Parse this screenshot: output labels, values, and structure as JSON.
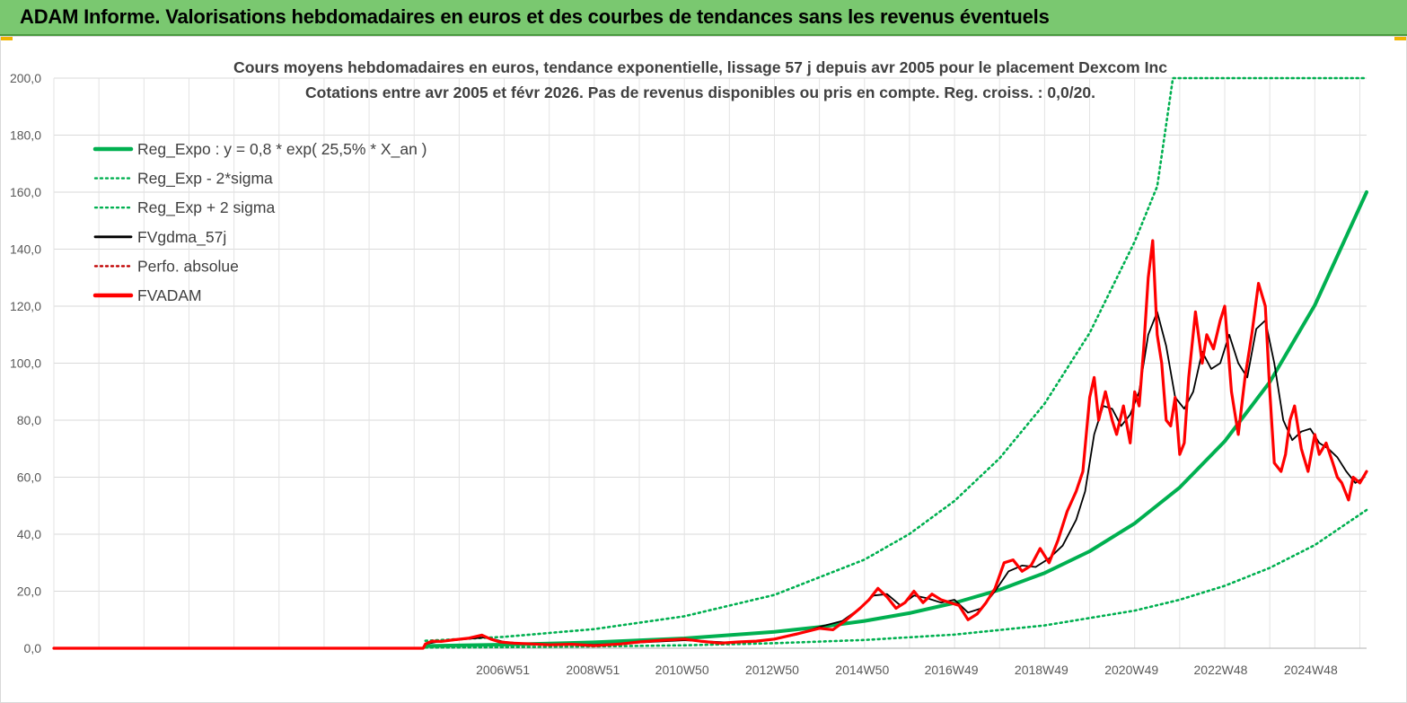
{
  "banner": {
    "title": "ADAM Informe. Valorisations hebdomadaires en euros et des courbes de tendances sans les revenus éventuels",
    "color": "#7ac870"
  },
  "chart_data": {
    "type": "line",
    "title": "Cours moyens hebdomadaires en euros, tendance exponentielle, lissage 57 j depuis avr 2005 pour le placement Dexcom Inc",
    "subtitle": "Cotations entre avr 2005 et févr 2026. Pas de revenus disponibles ou pris en compte. Reg. croiss. : 0,0/20.",
    "xlabel": "",
    "ylabel": "",
    "ylim": [
      0,
      200
    ],
    "xlim": [
      1997.0,
      2026.15
    ],
    "y_ticks": [
      "0,0",
      "20,0",
      "40,0",
      "60,0",
      "80,0",
      "100,0",
      "120,0",
      "140,0",
      "160,0",
      "180,0",
      "200,0"
    ],
    "x_ticks": [
      {
        "label": "2006W51",
        "x": 2006.97
      },
      {
        "label": "2008W51",
        "x": 2008.97
      },
      {
        "label": "2010W50",
        "x": 2010.95
      },
      {
        "label": "2012W50",
        "x": 2012.95
      },
      {
        "label": "2014W50",
        "x": 2014.95
      },
      {
        "label": "2016W49",
        "x": 2016.93
      },
      {
        "label": "2018W49",
        "x": 2018.93
      },
      {
        "label": "2020W49",
        "x": 2020.93
      },
      {
        "label": "2022W48",
        "x": 2022.91
      },
      {
        "label": "2024W48",
        "x": 2024.91
      }
    ],
    "grid": true,
    "legend_position": "top-left",
    "series": [
      {
        "name": "Reg_Expo : y = 0,8 * exp( 25,5% *  X_an )",
        "color": "#00b050",
        "style": "solid-thick",
        "x": [
          2005.25,
          2007,
          2009,
          2011,
          2013,
          2014,
          2015,
          2016,
          2017,
          2018,
          2019,
          2020,
          2021,
          2022,
          2023,
          2024,
          2025,
          2026.15
        ],
        "values": [
          0.8,
          1.25,
          2.08,
          3.46,
          5.77,
          7.43,
          9.57,
          12.3,
          15.9,
          20.5,
          26.4,
          34.0,
          43.8,
          56.4,
          72.6,
          93.4,
          120.3,
          160.0
        ]
      },
      {
        "name": "Reg_Exp - 2*sigma",
        "color": "#00b050",
        "style": "dotted",
        "x": [
          2005.25,
          2007,
          2009,
          2011,
          2013,
          2015,
          2017,
          2019,
          2021,
          2022,
          2023,
          2024,
          2025,
          2026.15
        ],
        "values": [
          0.25,
          0.38,
          0.63,
          1.05,
          1.75,
          2.9,
          4.8,
          8.0,
          13.2,
          17.0,
          21.9,
          28.2,
          36.2,
          48.5
        ]
      },
      {
        "name": "Reg_Exp + 2 sigma",
        "color": "#00b050",
        "style": "dotted",
        "x": [
          2005.25,
          2007,
          2009,
          2011,
          2013,
          2015,
          2016,
          2017,
          2018,
          2019,
          2020,
          2021,
          2021.5,
          2021.85,
          2022.5,
          2024,
          2026.15
        ],
        "values": [
          2.6,
          4.0,
          6.7,
          11.2,
          18.7,
          31.1,
          40.1,
          51.7,
          66.6,
          85.8,
          110.6,
          142.6,
          162.0,
          200.0,
          200.0,
          200.0,
          200.0
        ]
      },
      {
        "name": "FVgdma_57j",
        "color": "#000000",
        "style": "solid",
        "x": [
          2005.25,
          2005.5,
          2006,
          2006.6,
          2007,
          2007.5,
          2008,
          2008.5,
          2009,
          2009.5,
          2010,
          2010.5,
          2011,
          2011.5,
          2012,
          2012.5,
          2013,
          2013.5,
          2014,
          2014.5,
          2014.9,
          2015.2,
          2015.5,
          2015.8,
          2016.1,
          2016.4,
          2016.7,
          2017,
          2017.3,
          2017.6,
          2017.9,
          2018.2,
          2018.5,
          2018.8,
          2019.1,
          2019.4,
          2019.7,
          2019.9,
          2020.1,
          2020.3,
          2020.5,
          2020.7,
          2020.9,
          2021.1,
          2021.3,
          2021.5,
          2021.7,
          2021.9,
          2022.1,
          2022.3,
          2022.5,
          2022.7,
          2022.9,
          2023.1,
          2023.3,
          2023.5,
          2023.7,
          2023.9,
          2024.1,
          2024.3,
          2024.5,
          2024.7,
          2024.9,
          2025.1,
          2025.3,
          2025.5,
          2025.7,
          2025.9,
          2026.1
        ],
        "values": [
          1.5,
          2.2,
          3.0,
          3.8,
          2.2,
          1.6,
          1.4,
          1.3,
          1.2,
          1.5,
          2.0,
          2.4,
          2.8,
          2.4,
          2.0,
          2.4,
          3.2,
          4.8,
          7.5,
          9.5,
          14.0,
          18.5,
          19.0,
          15.0,
          18.5,
          17.5,
          16.0,
          17.0,
          12.5,
          14.0,
          20.0,
          27.0,
          29.0,
          28.5,
          31.5,
          36.0,
          45.0,
          55.0,
          75.0,
          85.0,
          84.0,
          78.0,
          82.0,
          90.0,
          110.0,
          118.0,
          106.0,
          88.0,
          84.0,
          90.0,
          104.0,
          98.0,
          100.0,
          110.0,
          100.0,
          95.0,
          112.0,
          115.0,
          100.0,
          80.0,
          73.0,
          76.0,
          77.0,
          72.0,
          70.0,
          67.0,
          62.0,
          58.0,
          60.0
        ]
      },
      {
        "name": "Perfo. absolue",
        "color": "#c00000",
        "style": "dotted",
        "x": [
          1997.0,
          2005.25
        ],
        "values": [
          0,
          0
        ]
      },
      {
        "name": "FVADAM",
        "color": "#ff0000",
        "style": "solid-thick",
        "x": [
          1997.0,
          2005.2,
          2005.25,
          2005.4,
          2005.6,
          2005.9,
          2006.2,
          2006.5,
          2006.7,
          2006.9,
          2007.2,
          2007.6,
          2008,
          2008.5,
          2009,
          2009.3,
          2009.6,
          2010,
          2010.5,
          2011,
          2011.4,
          2011.8,
          2012.2,
          2012.6,
          2013,
          2013.5,
          2014,
          2014.3,
          2014.6,
          2014.9,
          2015.1,
          2015.3,
          2015.5,
          2015.7,
          2015.9,
          2016.1,
          2016.3,
          2016.5,
          2016.7,
          2016.9,
          2017.1,
          2017.3,
          2017.5,
          2017.7,
          2017.9,
          2018.1,
          2018.3,
          2018.5,
          2018.7,
          2018.9,
          2019.1,
          2019.3,
          2019.5,
          2019.7,
          2019.85,
          2020.0,
          2020.1,
          2020.2,
          2020.35,
          2020.5,
          2020.6,
          2020.75,
          2020.9,
          2021.0,
          2021.1,
          2021.2,
          2021.3,
          2021.4,
          2021.5,
          2021.6,
          2021.7,
          2021.8,
          2021.9,
          2022.0,
          2022.1,
          2022.2,
          2022.35,
          2022.5,
          2022.6,
          2022.75,
          2022.9,
          2023.0,
          2023.15,
          2023.3,
          2023.45,
          2023.6,
          2023.75,
          2023.9,
          2024.0,
          2024.1,
          2024.25,
          2024.35,
          2024.45,
          2024.55,
          2024.7,
          2024.85,
          2025.0,
          2025.1,
          2025.25,
          2025.4,
          2025.5,
          2025.6,
          2025.75,
          2025.85,
          2026.0,
          2026.15
        ],
        "values": [
          0,
          0,
          1.5,
          2.5,
          2.4,
          3.0,
          3.5,
          4.6,
          3.2,
          2.2,
          1.8,
          1.5,
          1.2,
          1.4,
          0.9,
          1.2,
          1.5,
          2.2,
          2.8,
          3.2,
          2.4,
          1.8,
          2.2,
          2.5,
          3.2,
          5.0,
          7.0,
          6.5,
          10.0,
          14.0,
          17.0,
          21.0,
          18.0,
          14.0,
          16.0,
          20.0,
          16.0,
          19.0,
          17.0,
          16.0,
          15.0,
          10.0,
          12.0,
          16.0,
          21.0,
          30.0,
          31.0,
          27.0,
          29.0,
          35.0,
          30.0,
          38.0,
          48.0,
          55.0,
          62.0,
          88.0,
          95.0,
          80.0,
          90.0,
          80.0,
          75.0,
          85.0,
          72.0,
          90.0,
          85.0,
          105.0,
          130.0,
          143.0,
          110.0,
          100.0,
          80.0,
          78.0,
          88.0,
          68.0,
          72.0,
          95.0,
          118.0,
          100.0,
          110.0,
          105.0,
          115.0,
          120.0,
          90.0,
          75.0,
          95.0,
          110.0,
          128.0,
          120.0,
          90.0,
          65.0,
          62.0,
          68.0,
          80.0,
          85.0,
          70.0,
          62.0,
          75.0,
          68.0,
          72.0,
          65.0,
          60.0,
          58.0,
          52.0,
          60.0,
          58.0,
          62.0
        ]
      }
    ]
  }
}
